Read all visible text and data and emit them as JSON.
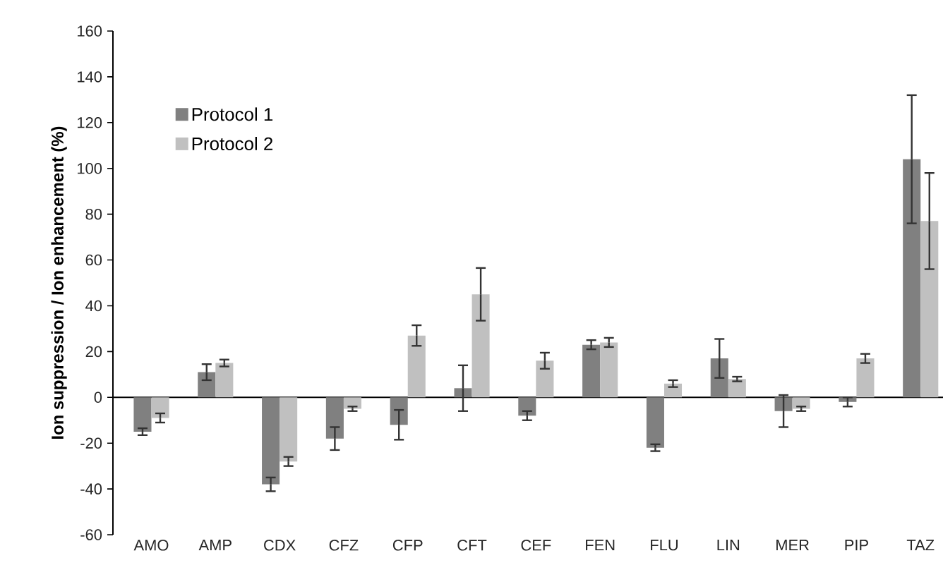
{
  "chart_data": {
    "type": "bar",
    "ylabel": "**Ion suppression / Ion enhancement (%)**",
    "categories": [
      "AMO",
      "AMP",
      "CDX",
      "CFZ",
      "CFP",
      "CFT",
      "CEF",
      "FEN",
      "FLU",
      "LIN",
      "MER",
      "PIP",
      "TAZ"
    ],
    "series": [
      {
        "name": "Protocol 1",
        "color": "#808080",
        "values": [
          -15,
          11,
          -38,
          -18,
          -12,
          4,
          -8,
          23,
          -22,
          17,
          -6,
          -2,
          104
        ],
        "errors": [
          1.5,
          3.5,
          3,
          5,
          6.5,
          10,
          2,
          2,
          1.5,
          8.5,
          7,
          2,
          28
        ]
      },
      {
        "name": "Protocol 2",
        "color": "#c0c0c0",
        "values": [
          -9,
          15,
          -28,
          -5,
          27,
          45,
          16,
          24,
          6,
          8,
          -5,
          17,
          77
        ],
        "errors": [
          2,
          1.5,
          2,
          1,
          4.5,
          11.5,
          3.5,
          2,
          1.5,
          1,
          1,
          2,
          21
        ]
      }
    ],
    "ylim": [
      -60,
      160
    ],
    "yticks": [
      -60,
      -40,
      -20,
      0,
      20,
      40,
      60,
      80,
      100,
      120,
      140,
      160
    ],
    "legend": "top left"
  }
}
